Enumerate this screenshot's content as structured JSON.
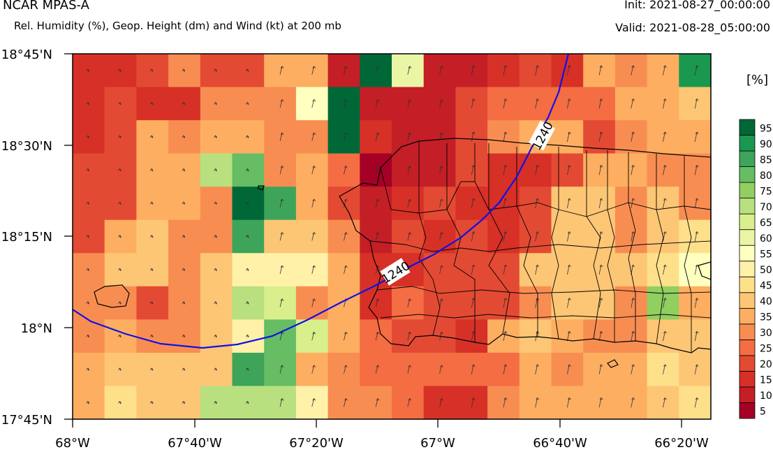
{
  "header": {
    "title": "NCAR MPAS-A",
    "subtitle": "Rel. Humidity (%), Geop. Height (dm) and Wind (kt) at 200 mb",
    "init": "Init: 2021-08-27_00:00:00",
    "valid": "Valid: 2021-08-28_05:00:00"
  },
  "colorbar": {
    "units": "[%]",
    "levels": [
      "5",
      "10",
      "15",
      "20",
      "25",
      "30",
      "35",
      "40",
      "45",
      "50",
      "55",
      "60",
      "65",
      "70",
      "75",
      "80",
      "85",
      "90",
      "95"
    ],
    "colors": [
      "#a50026",
      "#c41e27",
      "#d73027",
      "#e34a33",
      "#f46d43",
      "#f88d52",
      "#fdae61",
      "#fdc675",
      "#fee08b",
      "#fff1a8",
      "#ffffbf",
      "#eaf6a6",
      "#d9ef8b",
      "#b8e07f",
      "#91cf60",
      "#66bd63",
      "#3ea45a",
      "#1a9850",
      "#006837"
    ]
  },
  "axes": {
    "y_labels": [
      "18°45'N",
      "18°30'N",
      "18°15'N",
      "18°N",
      "17°45'N"
    ],
    "x_labels": [
      "68°W",
      "67°40'W",
      "67°20'W",
      "67°W",
      "66°40'W",
      "66°20'W"
    ]
  },
  "contour": {
    "label_1": "1240",
    "label_2": "1240"
  },
  "grid": {
    "values": [
      "ccdfddggbwlbbcdcgfgr",
      "cdccfffkwbbbdeeeeggh",
      "cdgfggffwcbbdfggdfgg",
      "ddggnpfgeabbdccdggff",
      "ddggfsqgdbcdccdhhfhf",
      "dghffqhhfbdcdcdhhfhi",
      "fhhfhjjjgccdddhhhhik",
      "ffdfhnmfgcedddfhhfog",
      "fgffhjpmgeddcghgffhh",
      "ghhhhqpgfeeeeegfggih",
      "gihhnnnjffeccfgggghi"
    ]
  }
}
